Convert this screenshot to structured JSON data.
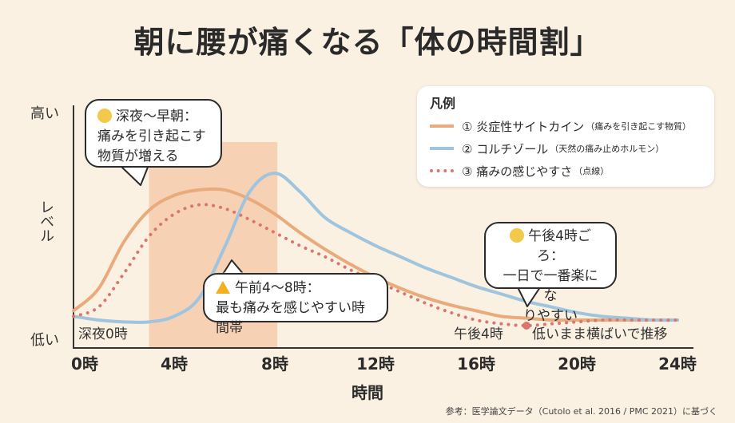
{
  "title": "朝に腰が痛くなる「体の時間割」",
  "chart_data": {
    "type": "line",
    "xlabel": "時間",
    "ylabel": "レベル",
    "y_high_label": "高い",
    "y_low_label": "低い",
    "xlim": [
      0,
      24
    ],
    "ylim": [
      0,
      1
    ],
    "x_ticks": [
      {
        "x": 0,
        "label": "0時"
      },
      {
        "x": 4,
        "label": "4時"
      },
      {
        "x": 8,
        "label": "8時"
      },
      {
        "x": 12,
        "label": "12時"
      },
      {
        "x": 16,
        "label": "16時"
      },
      {
        "x": 20,
        "label": "20時"
      },
      {
        "x": 24,
        "label": "24時"
      }
    ],
    "highlight_band": {
      "x_from": 3,
      "x_to": 8.1,
      "color": "#f6c6a3"
    },
    "series": [
      {
        "name": "① 炎症性サイトカイン",
        "note": "（痛みを引き起こす物質）",
        "color": "#e9aa7c",
        "style": "solid",
        "points": [
          [
            0,
            0.08
          ],
          [
            1,
            0.2
          ],
          [
            2,
            0.45
          ],
          [
            3,
            0.62
          ],
          [
            4,
            0.7
          ],
          [
            5,
            0.73
          ],
          [
            6,
            0.73
          ],
          [
            7,
            0.68
          ],
          [
            8,
            0.6
          ],
          [
            9,
            0.5
          ],
          [
            10,
            0.41
          ],
          [
            11,
            0.33
          ],
          [
            12,
            0.26
          ],
          [
            13,
            0.2
          ],
          [
            14,
            0.15
          ],
          [
            15,
            0.11
          ],
          [
            16,
            0.08
          ],
          [
            17,
            0.05
          ],
          [
            18,
            0.04
          ],
          [
            19,
            0.03
          ],
          [
            20,
            0.03
          ],
          [
            21,
            0.03
          ],
          [
            22,
            0.03
          ],
          [
            23,
            0.03
          ],
          [
            24,
            0.03
          ]
        ]
      },
      {
        "name": "② コルチゾール",
        "note": "（天然の痛み止めホルモン）",
        "color": "#9ec4de",
        "style": "solid",
        "points": [
          [
            0,
            0.05
          ],
          [
            1,
            0.03
          ],
          [
            2,
            0.02
          ],
          [
            3,
            0.02
          ],
          [
            4,
            0.05
          ],
          [
            5,
            0.15
          ],
          [
            6,
            0.42
          ],
          [
            7,
            0.72
          ],
          [
            8,
            0.82
          ],
          [
            9,
            0.72
          ],
          [
            10,
            0.58
          ],
          [
            11,
            0.5
          ],
          [
            12,
            0.43
          ],
          [
            13,
            0.37
          ],
          [
            14,
            0.31
          ],
          [
            15,
            0.26
          ],
          [
            16,
            0.21
          ],
          [
            17,
            0.17
          ],
          [
            18,
            0.13
          ],
          [
            19,
            0.1
          ],
          [
            20,
            0.07
          ],
          [
            21,
            0.05
          ],
          [
            22,
            0.04
          ],
          [
            23,
            0.03
          ],
          [
            24,
            0.03
          ]
        ]
      },
      {
        "name": "③ 痛みの感じやすさ",
        "note": "（点線）",
        "color": "#d9776e",
        "style": "dotted",
        "points": [
          [
            0,
            0.05
          ],
          [
            1,
            0.1
          ],
          [
            2,
            0.28
          ],
          [
            3,
            0.48
          ],
          [
            4,
            0.6
          ],
          [
            5,
            0.65
          ],
          [
            6,
            0.63
          ],
          [
            7,
            0.57
          ],
          [
            8,
            0.5
          ],
          [
            9,
            0.43
          ],
          [
            10,
            0.37
          ],
          [
            11,
            0.3
          ],
          [
            12,
            0.24
          ],
          [
            13,
            0.18
          ],
          [
            14,
            0.12
          ],
          [
            15,
            0.07
          ],
          [
            16,
            0.03
          ],
          [
            17,
            0.01
          ],
          [
            18,
            0.0
          ],
          [
            19,
            0.01
          ],
          [
            20,
            0.02
          ],
          [
            21,
            0.03
          ],
          [
            22,
            0.03
          ],
          [
            23,
            0.03
          ],
          [
            24,
            0.03
          ]
        ]
      }
    ],
    "legend": {
      "title": "凡例",
      "position": "top-right"
    },
    "inline_labels": {
      "start": "深夜0時",
      "afternoon": "午後4時",
      "flat": "低いまま横ばいで推移"
    },
    "annotations": {
      "night_line1": "深夜〜早朝：",
      "night_line2": "痛みを引き起こす",
      "night_line3": "物質が増える",
      "morning_line1": "午前4〜8時：",
      "morning_line2": "最も痛みを感じやすい時間帯",
      "afternoon_line1": "午後4時ごろ：",
      "afternoon_line2": "一日で一番楽にな",
      "afternoon_line3": "りやすい"
    }
  },
  "footer": "参考：医学論文データ（Cutolo et al. 2016 / PMC 2021）に基づく"
}
